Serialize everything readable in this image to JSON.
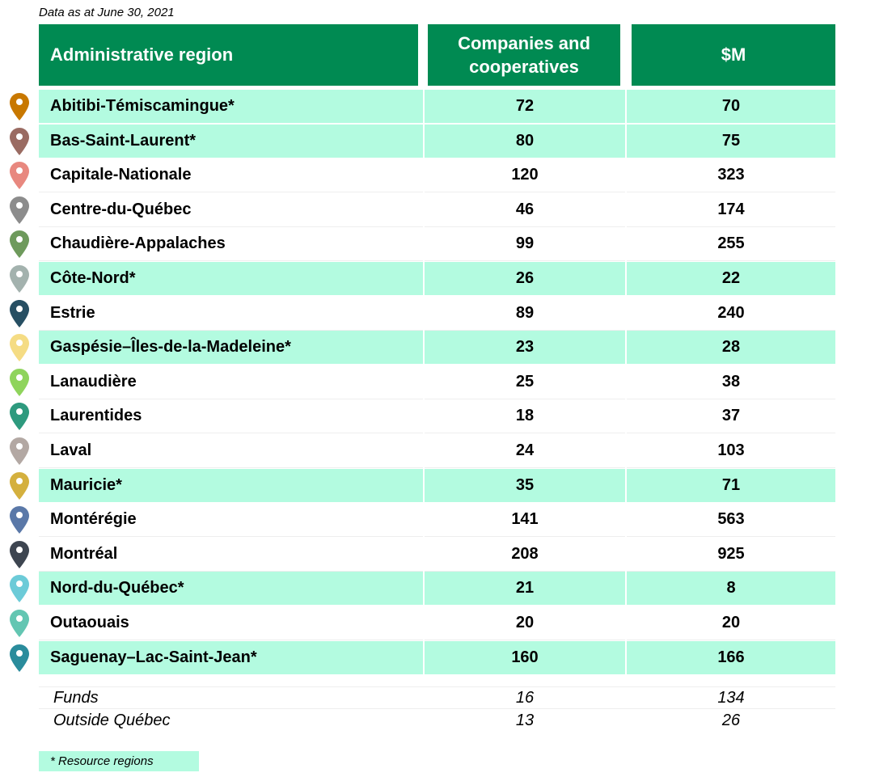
{
  "note": "Data as at June 30, 2021",
  "headers": {
    "region": "Administrative region",
    "companies": "Companies and cooperatives",
    "amount": "$M"
  },
  "rows": [
    {
      "region": "Abitibi-Témiscamingue*",
      "companies": "72",
      "amount": "70",
      "resource": true,
      "pin_color": "#c87800"
    },
    {
      "region": "Bas-Saint-Laurent*",
      "companies": "80",
      "amount": "75",
      "resource": true,
      "pin_color": "#9a6b62"
    },
    {
      "region": "Capitale-Nationale",
      "companies": "120",
      "amount": "323",
      "resource": false,
      "pin_color": "#e8887f"
    },
    {
      "region": "Centre-du-Québec",
      "companies": "46",
      "amount": "174",
      "resource": false,
      "pin_color": "#8c8c8c"
    },
    {
      "region": "Chaudière-Appalaches",
      "companies": "99",
      "amount": "255",
      "resource": false,
      "pin_color": "#6e9a5c"
    },
    {
      "region": "Côte-Nord*",
      "companies": "26",
      "amount": "22",
      "resource": true,
      "pin_color": "#a3b2ae"
    },
    {
      "region": "Estrie",
      "companies": "89",
      "amount": "240",
      "resource": false,
      "pin_color": "#274f63"
    },
    {
      "region": "Gaspésie–Îles-de-la-Madeleine*",
      "companies": "23",
      "amount": "28",
      "resource": true,
      "pin_color": "#f5dc84"
    },
    {
      "region": "Lanaudière",
      "companies": "25",
      "amount": "38",
      "resource": false,
      "pin_color": "#8fd45c"
    },
    {
      "region": "Laurentides",
      "companies": "18",
      "amount": "37",
      "resource": false,
      "pin_color": "#2e9a7e"
    },
    {
      "region": "Laval",
      "companies": "24",
      "amount": "103",
      "resource": false,
      "pin_color": "#b3a8a3"
    },
    {
      "region": "Mauricie*",
      "companies": "35",
      "amount": "71",
      "resource": true,
      "pin_color": "#d4b03e"
    },
    {
      "region": "Montérégie",
      "companies": "141",
      "amount": "563",
      "resource": false,
      "pin_color": "#5a78a8"
    },
    {
      "region": "Montréal",
      "companies": "208",
      "amount": "925",
      "resource": false,
      "pin_color": "#3d4550"
    },
    {
      "region": "Nord-du-Québec*",
      "companies": "21",
      "amount": "8",
      "resource": true,
      "pin_color": "#6ccbd8"
    },
    {
      "region": "Outaouais",
      "companies": "20",
      "amount": "20",
      "resource": false,
      "pin_color": "#63c6b2"
    },
    {
      "region": "Saguenay–Lac-Saint-Jean*",
      "companies": "160",
      "amount": "166",
      "resource": true,
      "pin_color": "#2a8c9c"
    }
  ],
  "footer_rows": [
    {
      "label": "Funds",
      "companies": "16",
      "amount": "134"
    },
    {
      "label": "Outside Québec",
      "companies": "13",
      "amount": "26"
    }
  ],
  "legend": "* Resource regions",
  "colors": {
    "header_bg": "#008a52",
    "highlight_bg": "#b3fbe0"
  }
}
